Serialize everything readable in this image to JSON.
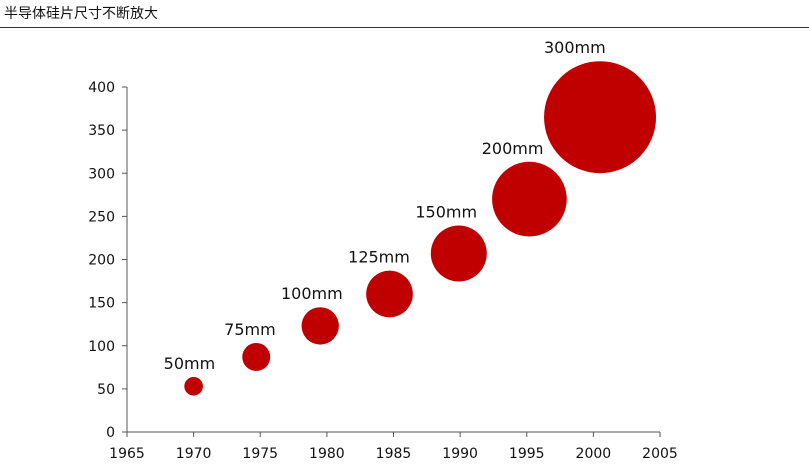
{
  "title": "半导体硅片尺寸不断放大",
  "colors": {
    "bubble": "#c00000",
    "axis": "#555555",
    "text": "#111111"
  },
  "chart_data": {
    "type": "bubble",
    "title": "",
    "xlabel": "",
    "ylabel": "",
    "xlim": [
      1965,
      2005
    ],
    "ylim": [
      0,
      400
    ],
    "xticks": [
      1965,
      1970,
      1975,
      1980,
      1985,
      1990,
      1995,
      2000,
      2005
    ],
    "yticks": [
      0,
      50,
      100,
      150,
      200,
      250,
      300,
      350,
      400
    ],
    "grid": false,
    "legend": "none",
    "points": [
      {
        "label": "50mm",
        "x": 1970.0,
        "y": 53,
        "size": 50
      },
      {
        "label": "75mm",
        "x": 1974.7,
        "y": 87,
        "size": 75
      },
      {
        "label": "100mm",
        "x": 1979.5,
        "y": 123,
        "size": 100
      },
      {
        "label": "125mm",
        "x": 1984.7,
        "y": 160,
        "size": 125
      },
      {
        "label": "150mm",
        "x": 1989.9,
        "y": 207,
        "size": 150
      },
      {
        "label": "200mm",
        "x": 1995.2,
        "y": 270,
        "size": 200
      },
      {
        "label": "300mm",
        "x": 2000.5,
        "y": 365,
        "size": 300
      }
    ]
  }
}
